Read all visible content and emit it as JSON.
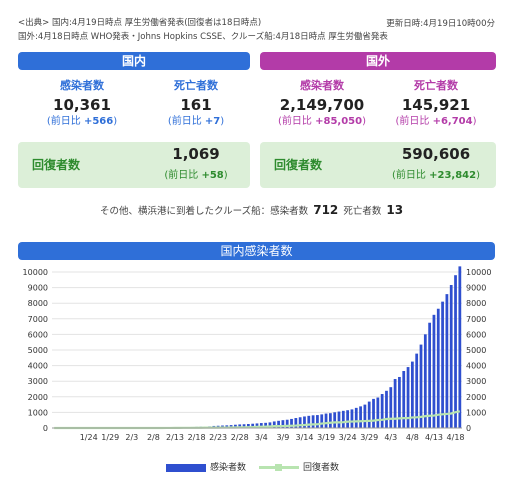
{
  "source": {
    "line1": "<出典> 国内:4月19日時点 厚生労働省発表(回復者は18日時点)",
    "line2": "国外:4月18日時点 WHO発表・Johns Hopkins CSSE、クルーズ船:4月18日時点 厚生労働省発表",
    "updated": "更新日時:4月19日10時00分"
  },
  "domestic": {
    "header": "国内",
    "infected": {
      "label": "感染者数",
      "value": "10,361",
      "diff_prefix": "(前日比 ",
      "diff_value": "+566",
      "diff_suffix": ")"
    },
    "deaths": {
      "label": "死亡者数",
      "value": "161",
      "diff_prefix": "(前日比 ",
      "diff_value": "+7",
      "diff_suffix": ")"
    },
    "recovered": {
      "label": "回復者数",
      "value": "1,069",
      "diff_prefix": "(前日比 ",
      "diff_value": "+58",
      "diff_suffix": ")"
    }
  },
  "international": {
    "header": "国外",
    "infected": {
      "label": "感染者数",
      "value": "2,149,700",
      "diff_prefix": "(前日比 ",
      "diff_value": "+85,050",
      "diff_suffix": ")"
    },
    "deaths": {
      "label": "死亡者数",
      "value": "145,921",
      "diff_prefix": "(前日比 ",
      "diff_value": "+6,704",
      "diff_suffix": ")"
    },
    "recovered": {
      "label": "回復者数",
      "value": "590,606",
      "diff_prefix": "(前日比 ",
      "diff_value": "+23,842",
      "diff_suffix": ")"
    }
  },
  "cruise": {
    "text1": "その他、横浜港に到着したクルーズ船：感染者数",
    "infected": "712",
    "text2": "死亡者数",
    "deaths": "13"
  },
  "chart_data": {
    "type": "bar",
    "title": "国内感染者数",
    "x_ticks": [
      "1/24",
      "1/29",
      "2/3",
      "2/8",
      "2/13",
      "2/18",
      "2/23",
      "2/28",
      "3/4",
      "3/9",
      "3/14",
      "3/19",
      "3/24",
      "3/29",
      "4/3",
      "4/8",
      "4/13",
      "4/18"
    ],
    "ylim": [
      0,
      10000
    ],
    "y_ticks": [
      "0",
      "1000",
      "2000",
      "3000",
      "4000",
      "5000",
      "6000",
      "7000",
      "8000",
      "9000",
      "10000"
    ],
    "dates": [
      "1/16",
      "1/17",
      "1/18",
      "1/19",
      "1/20",
      "1/21",
      "1/22",
      "1/23",
      "1/24",
      "1/25",
      "1/26",
      "1/27",
      "1/28",
      "1/29",
      "1/30",
      "1/31",
      "2/1",
      "2/2",
      "2/3",
      "2/4",
      "2/5",
      "2/6",
      "2/7",
      "2/8",
      "2/9",
      "2/10",
      "2/11",
      "2/12",
      "2/13",
      "2/14",
      "2/15",
      "2/16",
      "2/17",
      "2/18",
      "2/19",
      "2/20",
      "2/21",
      "2/22",
      "2/23",
      "2/24",
      "2/25",
      "2/26",
      "2/27",
      "2/28",
      "2/29",
      "3/1",
      "3/2",
      "3/3",
      "3/4",
      "3/5",
      "3/6",
      "3/7",
      "3/8",
      "3/9",
      "3/10",
      "3/11",
      "3/12",
      "3/13",
      "3/14",
      "3/15",
      "3/16",
      "3/17",
      "3/18",
      "3/19",
      "3/20",
      "3/21",
      "3/22",
      "3/23",
      "3/24",
      "3/25",
      "3/26",
      "3/27",
      "3/28",
      "3/29",
      "3/30",
      "3/31",
      "4/1",
      "4/2",
      "4/3",
      "4/4",
      "4/5",
      "4/6",
      "4/7",
      "4/8",
      "4/9",
      "4/10",
      "4/11",
      "4/12",
      "4/13",
      "4/14",
      "4/15",
      "4/16",
      "4/17",
      "4/18",
      "4/19"
    ],
    "series": [
      {
        "name": "感染者数",
        "color": "#2f4fcf",
        "values": [
          1,
          1,
          1,
          1,
          1,
          1,
          1,
          1,
          2,
          3,
          4,
          4,
          7,
          8,
          11,
          14,
          17,
          17,
          17,
          20,
          20,
          25,
          25,
          25,
          26,
          26,
          26,
          28,
          33,
          41,
          53,
          59,
          66,
          73,
          84,
          94,
          105,
          132,
          144,
          159,
          170,
          186,
          210,
          230,
          241,
          256,
          274,
          293,
          317,
          331,
          360,
          420,
          461,
          502,
          530,
          581,
          639,
          689,
          739,
          780,
          814,
          829,
          873,
          926,
          950,
          1007,
          1055,
          1101,
          1140,
          1193,
          1291,
          1387,
          1499,
          1693,
          1866,
          1953,
          2178,
          2384,
          2617,
          3139,
          3271,
          3654,
          3906,
          4257,
          4768,
          5347,
          6005,
          6748,
          7255,
          7645,
          8100,
          8582,
          9167,
          9795,
          10361
        ]
      },
      {
        "name": "回復者数",
        "color": "#b8e4b0",
        "values": [
          0,
          0,
          0,
          0,
          0,
          0,
          0,
          0,
          0,
          0,
          0,
          0,
          0,
          0,
          0,
          0,
          0,
          0,
          0,
          0,
          0,
          0,
          1,
          1,
          1,
          1,
          4,
          4,
          9,
          9,
          12,
          12,
          12,
          14,
          18,
          22,
          22,
          23,
          24,
          27,
          29,
          32,
          34,
          41,
          43,
          46,
          53,
          76,
          80,
          87,
          101,
          118,
          118,
          123,
          135,
          144,
          157,
          180,
          191,
          215,
          232,
          235,
          285,
          310,
          335,
          359,
          359,
          372,
          409,
          414,
          424,
          432,
          444,
          455,
          472,
          514,
          524,
          575,
          592,
          592,
          619,
          632,
          632,
          677,
          684,
          714,
          762,
          784,
          799,
          853,
          878,
          901,
          930,
          1011,
          1069
        ]
      }
    ]
  },
  "legend": {
    "bar": "感染者数",
    "line": "回復者数"
  }
}
